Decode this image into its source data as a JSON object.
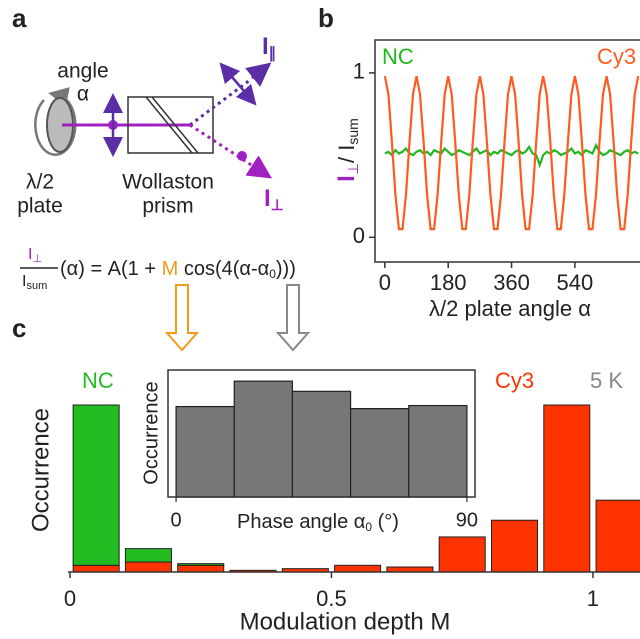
{
  "panel_labels": [
    "a",
    "b",
    "c"
  ],
  "diagram": {
    "angle": "angle",
    "alpha": "α",
    "waveplate": [
      "λ/2",
      "plate"
    ],
    "prism": [
      "Wollaston",
      "prism"
    ],
    "i_parallel": [
      "I",
      "∥"
    ],
    "i_perp": [
      "I",
      "⊥"
    ],
    "formula": {
      "numerator": [
        "I",
        "⊥"
      ],
      "denominator": [
        "I",
        "sum"
      ],
      "parts": [
        "(α) = A(1 + ",
        "M",
        " cos(4(α-α",
        "0",
        ")))"
      ]
    }
  },
  "chart_data": [
    {
      "type": "line",
      "xlabel": "λ/2 plate angle α",
      "ylabel": [
        "I",
        "⊥",
        "/ I",
        "sum"
      ],
      "xlim": [
        -28,
        725
      ],
      "ylim": [
        -0.15,
        1.2
      ],
      "xticks": [
        0,
        180,
        360,
        540
      ],
      "yticks": [
        0,
        1
      ],
      "x": [
        0,
        10,
        20,
        30,
        40,
        50,
        60,
        70,
        80,
        90,
        100,
        110,
        120,
        130,
        140,
        150,
        160,
        170,
        180,
        190,
        200,
        210,
        220,
        230,
        240,
        250,
        260,
        270,
        280,
        290,
        300,
        310,
        320,
        330,
        340,
        350,
        360,
        370,
        380,
        390,
        400,
        410,
        420,
        430,
        440,
        450,
        460,
        470,
        480,
        490,
        500,
        510,
        520,
        530,
        540,
        550,
        560,
        570,
        580,
        590,
        600,
        610,
        620,
        630,
        640,
        650,
        660,
        670,
        680,
        690,
        700,
        710,
        720
      ],
      "series": [
        {
          "name": "NC",
          "color": "#1fb81f",
          "values": [
            0.51,
            0.52,
            0.5,
            0.53,
            0.51,
            0.52,
            0.54,
            0.51,
            0.5,
            0.52,
            0.53,
            0.51,
            0.52,
            0.5,
            0.53,
            0.52,
            0.51,
            0.54,
            0.52,
            0.5,
            0.51,
            0.53,
            0.52,
            0.51,
            0.5,
            0.52,
            0.54,
            0.51,
            0.52,
            0.53,
            0.5,
            0.52,
            0.51,
            0.53,
            0.52,
            0.51,
            0.5,
            0.52,
            0.53,
            0.51,
            0.52,
            0.55,
            0.51,
            0.5,
            0.44,
            0.5,
            0.52,
            0.51,
            0.53,
            0.52,
            0.5,
            0.51,
            0.52,
            0.54,
            0.51,
            0.52,
            0.5,
            0.53,
            0.52,
            0.51,
            0.56,
            0.52,
            0.5,
            0.51,
            0.53,
            0.52,
            0.51,
            0.5,
            0.52,
            0.53,
            0.51,
            0.52,
            0.51
          ]
        },
        {
          "name": "Cy3",
          "color": "#ff5a1f",
          "values": [
            0.98,
            0.87,
            0.58,
            0.26,
            0.05,
            0.05,
            0.26,
            0.58,
            0.87,
            0.98,
            0.87,
            0.58,
            0.26,
            0.05,
            0.05,
            0.26,
            0.58,
            0.87,
            0.98,
            0.87,
            0.58,
            0.26,
            0.05,
            0.05,
            0.26,
            0.58,
            0.87,
            0.98,
            0.87,
            0.58,
            0.26,
            0.05,
            0.05,
            0.26,
            0.58,
            0.87,
            0.98,
            0.87,
            0.58,
            0.26,
            0.05,
            0.05,
            0.26,
            0.58,
            0.87,
            0.98,
            0.87,
            0.58,
            0.26,
            0.05,
            0.05,
            0.26,
            0.58,
            0.87,
            0.98,
            0.87,
            0.58,
            0.26,
            0.05,
            0.05,
            0.26,
            0.58,
            0.87,
            0.98,
            0.87,
            0.58,
            0.26,
            0.05,
            0.05,
            0.26,
            0.58,
            0.87,
            0.98
          ]
        }
      ]
    },
    {
      "type": "histogram",
      "xlabel": "Modulation depth M",
      "ylabel": "Occurrence",
      "annotation": "5 K",
      "xlim": [
        0,
        1.09
      ],
      "ylim": [
        0,
        100
      ],
      "xticks": [
        0,
        0.5,
        1
      ],
      "bins": [
        0,
        0.1,
        0.2,
        0.3,
        0.4,
        0.5,
        0.6,
        0.7,
        0.8,
        0.9,
        1.0,
        1.1
      ],
      "series": [
        {
          "name": "Cy3",
          "color": "#ff3300",
          "values": [
            4,
            6,
            4,
            1,
            2,
            4,
            3,
            21,
            31,
            100,
            43
          ]
        },
        {
          "name": "NC",
          "color": "#22bb22",
          "values": [
            96,
            8,
            1,
            0,
            0,
            0,
            0,
            0,
            0,
            0,
            0
          ]
        }
      ]
    },
    {
      "type": "histogram",
      "xlabel": [
        "Phase angle α",
        "0",
        " (°)"
      ],
      "ylabel": "Occurrence",
      "xlim": [
        -2.5,
        92.5
      ],
      "ylim": [
        0,
        125
      ],
      "xticks": [
        0,
        90
      ],
      "bins": [
        0,
        18,
        36,
        54,
        72,
        90
      ],
      "color": "#777777",
      "values": [
        89,
        114,
        104,
        87,
        90
      ]
    }
  ]
}
